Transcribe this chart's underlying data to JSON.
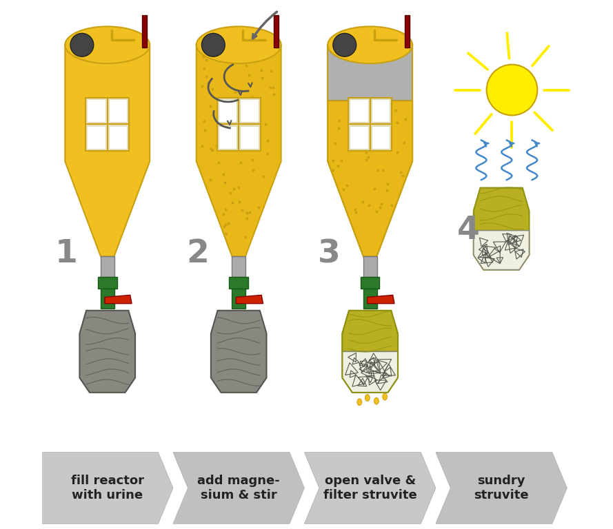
{
  "bg_color": "#ffffff",
  "step_labels": [
    "1",
    "2",
    "3",
    "4"
  ],
  "arrow_labels": [
    "fill reactor\nwith urine",
    "add magne-\nsium & stir",
    "open valve &\nfilter struvite",
    "sundry\nstruvite"
  ],
  "arrow_text_color": "#222222",
  "label_color": "#888888",
  "reactor_yellow": "#f0c020",
  "reactor_yellow_dark": "#c8a010",
  "reactor_yellow_fill": "#e8b818",
  "struvite_color": "#b8b020",
  "struvite_dark": "#909010",
  "green_pipe": "#2a7a2a",
  "red_valve": "#cc2200",
  "grey_bottle": "#888880",
  "grey_bottle_dark": "#555550",
  "white_crystal": "#f0f0e0",
  "sun_yellow": "#ffee00",
  "blue_steam": "#4488cc"
}
